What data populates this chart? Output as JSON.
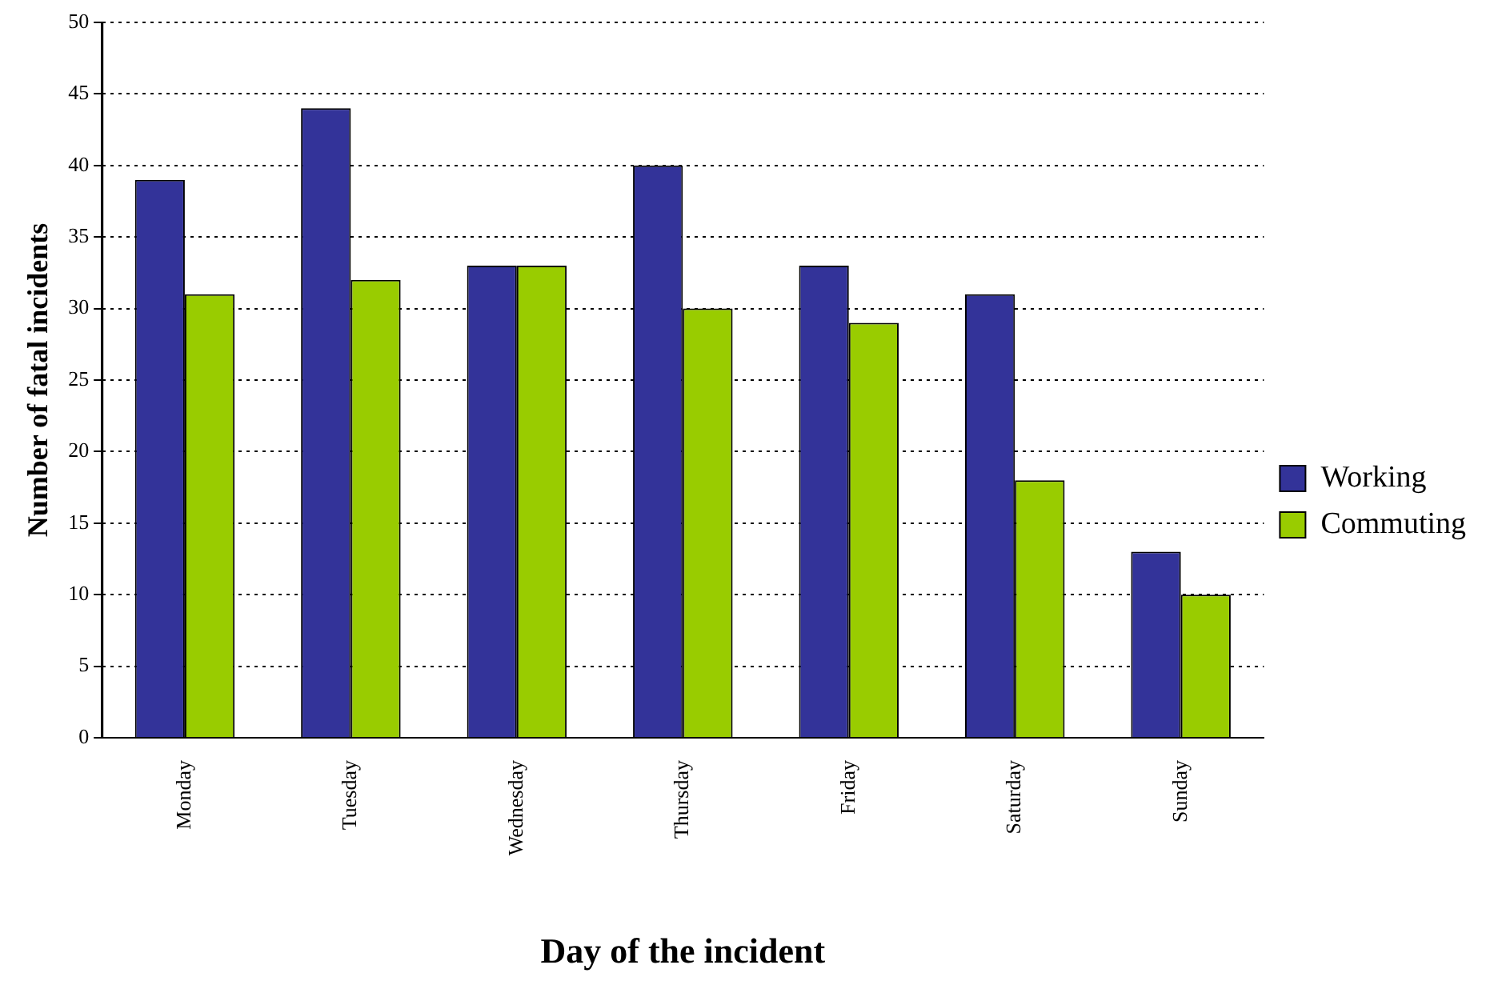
{
  "chart_data": {
    "type": "bar",
    "xlabel": "Day of the incident",
    "ylabel": "Number of fatal incidents",
    "categories": [
      "Monday",
      "Tuesday",
      "Wednesday",
      "Thursday",
      "Friday",
      "Saturday",
      "Sunday"
    ],
    "series": [
      {
        "name": "Working",
        "color": "#333399",
        "values": [
          39,
          44,
          33,
          40,
          33,
          31,
          13
        ]
      },
      {
        "name": "Commuting",
        "color": "#99cc00",
        "values": [
          31,
          32,
          33,
          30,
          29,
          18,
          10
        ]
      }
    ],
    "ylim": [
      0,
      50
    ],
    "yticks": [
      0,
      5,
      10,
      15,
      20,
      25,
      30,
      35,
      40,
      45,
      50
    ],
    "grid": "y",
    "legend": "right"
  }
}
